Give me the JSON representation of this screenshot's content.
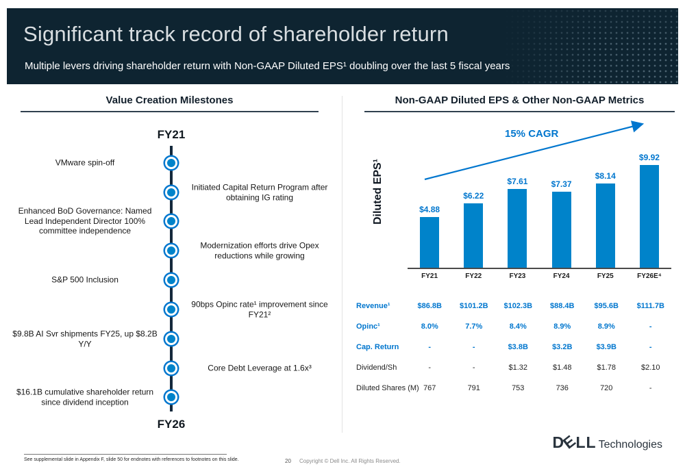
{
  "header": {
    "title": "Significant track record of shareholder return",
    "subtitle": "Multiple levers driving shareholder return with Non-GAAP Diluted EPS¹ doubling over the last 5 fiscal years"
  },
  "left_panel": {
    "title": "Value Creation Milestones",
    "timeline": {
      "start_label": "FY21",
      "end_label": "FY26",
      "items": [
        {
          "side": "left",
          "text": "VMware spin-off"
        },
        {
          "side": "right",
          "text": "Initiated Capital Return Program after obtaining IG rating"
        },
        {
          "side": "left",
          "text": "Enhanced BoD Governance: Named Lead Independent Director 100% committee independence"
        },
        {
          "side": "right",
          "text": "Modernization efforts drive Opex reductions while growing"
        },
        {
          "side": "left",
          "text": "S&P 500 Inclusion"
        },
        {
          "side": "right",
          "text": "90bps Opinc rate¹ improvement since FY21²"
        },
        {
          "side": "left",
          "text": "$9.8B AI Svr shipments FY25, up $8.2B Y/Y"
        },
        {
          "side": "right",
          "text": "Core Debt Leverage at 1.6x³"
        },
        {
          "side": "left",
          "text": "$16.1B cumulative shareholder return since dividend inception"
        }
      ]
    }
  },
  "right_panel": {
    "title": "Non-GAAP Diluted EPS & Other Non-GAAP Metrics",
    "y_axis_label": "Diluted EPS¹",
    "cagr_label": "15% CAGR"
  },
  "chart_data": {
    "type": "bar",
    "title": "Non-GAAP Diluted EPS & Other Non-GAAP Metrics",
    "ylabel": "Diluted EPS¹",
    "categories": [
      "FY21",
      "FY22",
      "FY23",
      "FY24",
      "FY25",
      "FY26E⁴"
    ],
    "values": [
      4.88,
      6.22,
      7.61,
      7.37,
      8.14,
      9.92
    ],
    "value_labels": [
      "$4.88",
      "$6.22",
      "$7.61",
      "$7.37",
      "$8.14",
      "$9.92"
    ],
    "annotation": "15% CAGR",
    "ylim": [
      0,
      10.9
    ],
    "grid": false,
    "legend_position": "none",
    "bar_color": "#0083CA"
  },
  "metrics_table": {
    "rows": [
      {
        "label": "Revenue¹",
        "values": [
          "$86.8B",
          "$101.2B",
          "$102.3B",
          "$88.4B",
          "$95.6B",
          "$111.7B"
        ],
        "style": "blue"
      },
      {
        "label": "Opinc¹",
        "values": [
          "8.0%",
          "7.7%",
          "8.4%",
          "8.9%",
          "8.9%",
          "-"
        ],
        "style": "blue"
      },
      {
        "label": "Cap. Return",
        "values": [
          "-",
          "-",
          "$3.8B",
          "$3.2B",
          "$3.9B",
          "-"
        ],
        "style": "blue"
      },
      {
        "label": "Dividend/Sh",
        "values": [
          "-",
          "-",
          "$1.32",
          "$1.48",
          "$1.78",
          "$2.10"
        ],
        "style": "dark"
      },
      {
        "label": "Diluted Shares (M)",
        "values": [
          "767",
          "791",
          "753",
          "736",
          "720",
          "-"
        ],
        "style": "dark"
      }
    ]
  },
  "footer": {
    "footnote": "See supplemental slide in Appendix F, slide 50 for endnotes with references to footnotes on this slide.",
    "page_number": "20",
    "copyright": "Copyright © Dell Inc. All Rights Reserved.",
    "logo": {
      "d": "D",
      "e": "E",
      "ll": "LL",
      "technologies": "Technologies"
    }
  },
  "colors": {
    "header_bg": "#0E2431",
    "dell_blue": "#0076CE",
    "bar_blue": "#0083CA",
    "timeline_line": "#15293C"
  }
}
